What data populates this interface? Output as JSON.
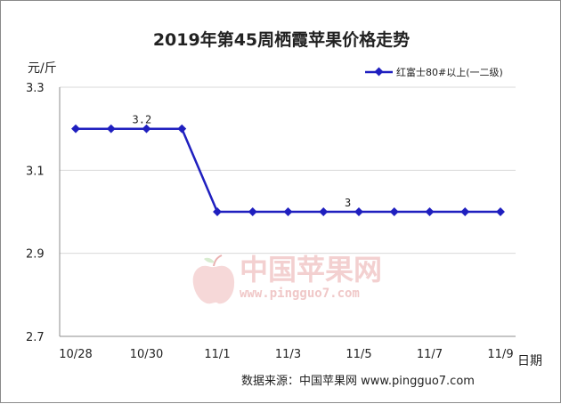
{
  "colors": {
    "series": "#1f1fbf",
    "grid": "#d9d9d9",
    "axis": "#8c8c8c"
  },
  "watermark": {
    "text": "中国苹果网",
    "url": "www.pingguo7.com",
    "icon": "apple-logo-icon"
  },
  "chart_data": {
    "type": "line",
    "title": "2019年第45周栖霞苹果价格走势",
    "ylabel": "元/斤",
    "xlabel": "日期",
    "ylim": [
      2.7,
      3.3
    ],
    "yticks": [
      "2.7",
      "2.9",
      "3.1",
      "3.3"
    ],
    "categories": [
      "10/28",
      "10/29",
      "10/30",
      "10/31",
      "11/1",
      "11/2",
      "11/3",
      "11/4",
      "11/5",
      "11/6",
      "11/7",
      "11/8",
      "11/9"
    ],
    "xtick_labels": [
      "10/28",
      "10/30",
      "11/1",
      "11/3",
      "11/5",
      "11/7",
      "11/9"
    ],
    "series": [
      {
        "name": "红富士80#以上(一二级)",
        "values": [
          3.2,
          3.2,
          3.2,
          3.2,
          3.0,
          3.0,
          3.0,
          3.0,
          3.0,
          3.0,
          3.0,
          3.0,
          3.0
        ]
      }
    ],
    "data_labels": [
      {
        "index": 2,
        "text": "3.2"
      },
      {
        "index": 8,
        "text": "3"
      }
    ],
    "legend": "top-right",
    "grid": true,
    "source": "数据来源：中国苹果网 www.pingguo7.com"
  }
}
